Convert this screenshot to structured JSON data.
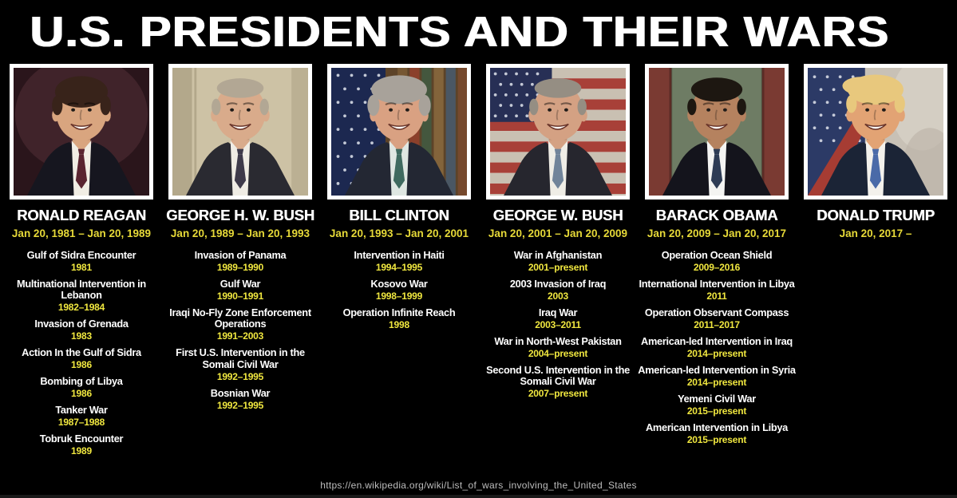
{
  "title": "U.S. PRESIDENTS AND THEIR WARS",
  "source_url": "https://en.wikipedia.org/wiki/List_of_wars_involving_the_United_States",
  "colors": {
    "background": "#000000",
    "title_text": "#ffffff",
    "president_name": "#ffffff",
    "term_yellow": "#e6d938",
    "war_name_white": "#ffffff",
    "war_dates_yellow": "#f0e73f",
    "source_text": "#bdbdbd",
    "photo_border": "#ffffff"
  },
  "presidents": [
    {
      "name": "RONALD REAGAN",
      "term": "Jan 20, 1981 – Jan 20, 1989",
      "portrait": {
        "icon": "ronald-reagan-portrait",
        "bg_type": "dark",
        "bg": [
          "#2a151b",
          "#4a2930"
        ],
        "skin": "#d9a57f",
        "hair": "#38231a",
        "suit": "#16161f",
        "shirt": "#f1ede4",
        "tie": "#5a2430",
        "hair_style": "full"
      },
      "wars": [
        {
          "name": "Gulf of Sidra Encounter",
          "dates": "1981"
        },
        {
          "name": "Multinational Intervention in Lebanon",
          "dates": "1982–1984"
        },
        {
          "name": "Invasion of Grenada",
          "dates": "1983"
        },
        {
          "name": "Action In the Gulf of Sidra",
          "dates": "1986"
        },
        {
          "name": "Bombing of Libya",
          "dates": "1986"
        },
        {
          "name": "Tanker War",
          "dates": "1987–1988"
        },
        {
          "name": "Tobruk Encounter",
          "dates": "1989"
        }
      ]
    },
    {
      "name": "GEORGE H. W. BUSH",
      "term": "Jan 20, 1989 – Jan 20, 1993",
      "portrait": {
        "icon": "george-h-w-bush-portrait",
        "bg_type": "interior",
        "bg": [
          "#cdc2a5",
          "#b3a88b"
        ],
        "skin": "#d9ab8b",
        "hair": "#b2a794",
        "suit": "#2a2a31",
        "shirt": "#efece4",
        "tie": "#3e3a4a",
        "hair_style": "receding"
      },
      "wars": [
        {
          "name": "Invasion of Panama",
          "dates": "1989–1990"
        },
        {
          "name": "Gulf War",
          "dates": "1990–1991"
        },
        {
          "name": "Iraqi No-Fly Zone Enforcement Operations",
          "dates": "1991–2003"
        },
        {
          "name": "First U.S. Intervention in the Somali Civil War",
          "dates": "1992–1995"
        },
        {
          "name": "Bosnian War",
          "dates": "1992–1995"
        }
      ]
    },
    {
      "name": "BILL CLINTON",
      "term": "Jan 20, 1993 – Jan 20, 2001",
      "portrait": {
        "icon": "bill-clinton-portrait",
        "bg_type": "flag-books",
        "bg": [
          "#1c2850",
          "#5d4328"
        ],
        "skin": "#d9a182",
        "hair": "#a8a29a",
        "suit": "#232733",
        "shirt": "#dfe7e2",
        "tie": "#3f6a5f",
        "hair_style": "fluffy"
      },
      "wars": [
        {
          "name": "Intervention in Haiti",
          "dates": "1994–1995"
        },
        {
          "name": "Kosovo War",
          "dates": "1998–1999"
        },
        {
          "name": "Operation Infinite Reach",
          "dates": "1998"
        }
      ]
    },
    {
      "name": "GEORGE W. BUSH",
      "term": "Jan 20, 2001 – Jan 20, 2009",
      "portrait": {
        "icon": "george-w-bush-portrait",
        "bg_type": "flag",
        "bg": [
          "#272f55",
          "#c9c0b2",
          "#a84038"
        ],
        "skin": "#d4a183",
        "hair": "#958e83",
        "suit": "#26262e",
        "shirt": "#efede6",
        "tie": "#71849a",
        "hair_style": "receding"
      },
      "wars": [
        {
          "name": "War in Afghanistan",
          "dates": "2001–present"
        },
        {
          "name": "2003 Invasion of Iraq",
          "dates": "2003"
        },
        {
          "name": "Iraq War",
          "dates": "2003–2011"
        },
        {
          "name": "War in North-West Pakistan",
          "dates": "2004–present"
        },
        {
          "name": "Second U.S. Intervention in the Somali Civil War",
          "dates": "2007–present"
        }
      ]
    },
    {
      "name": "BARACK OBAMA",
      "term": "Jan 20, 2009 – Jan 20, 2017",
      "portrait": {
        "icon": "barack-obama-portrait",
        "bg_type": "pillars",
        "bg": [
          "#6e7c64",
          "#7a3a32"
        ],
        "skin": "#b5825f",
        "hair": "#1d1711",
        "suit": "#14141c",
        "shirt": "#f4f4f2",
        "tie": "#2e3c55",
        "hair_style": "short"
      },
      "wars": [
        {
          "name": "Operation Ocean Shield",
          "dates": "2009–2016"
        },
        {
          "name": "International Intervention in Libya",
          "dates": "2011"
        },
        {
          "name": "Operation Observant Compass",
          "dates": "2011–2017"
        },
        {
          "name": "American-led Intervention in Iraq",
          "dates": "2014–present"
        },
        {
          "name": "American-led Intervention in Syria",
          "dates": "2014–present"
        },
        {
          "name": "Yemeni Civil War",
          "dates": "2015–present"
        },
        {
          "name": "American Intervention in Libya",
          "dates": "2015–present"
        }
      ]
    },
    {
      "name": "DONALD TRUMP",
      "term": "Jan 20, 2017 –",
      "portrait": {
        "icon": "donald-trump-portrait",
        "bg_type": "flag-marble",
        "bg": [
          "#2c3a66",
          "#a63c33",
          "#c8c1b6"
        ],
        "skin": "#e2a374",
        "hair": "#e8c87d",
        "suit": "#1b2436",
        "shirt": "#f3f1ec",
        "tie": "#4a6aa8",
        "hair_style": "swoop"
      },
      "wars": []
    }
  ]
}
